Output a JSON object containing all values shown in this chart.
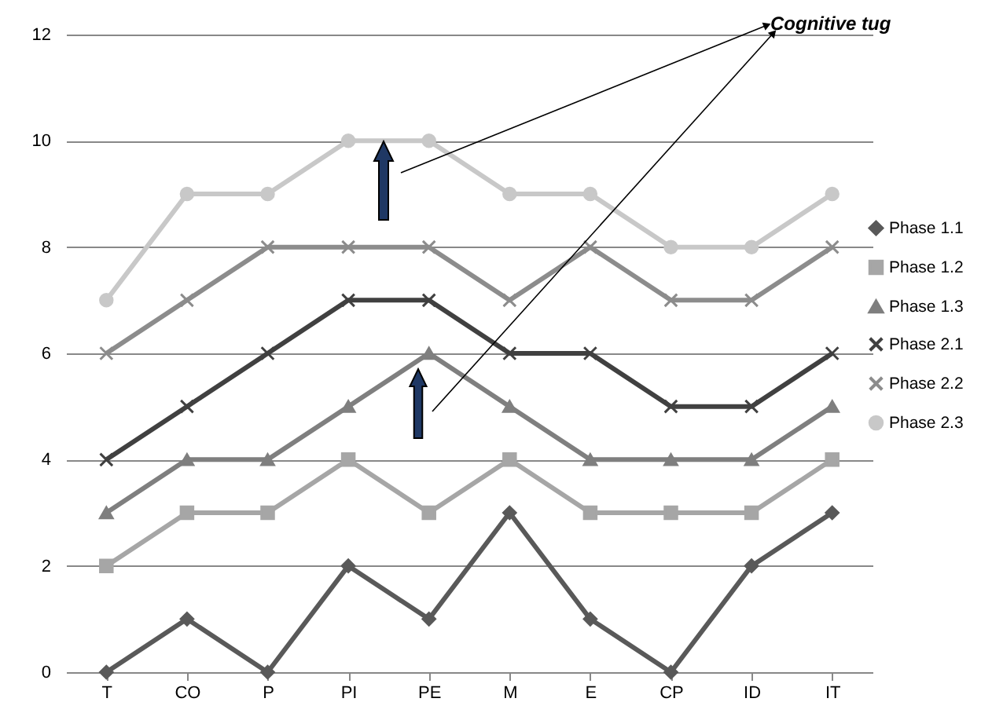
{
  "chart_data": {
    "type": "line",
    "categories": [
      "T",
      "CO",
      "P",
      "PI",
      "PE",
      "M",
      "E",
      "CP",
      "ID",
      "IT"
    ],
    "ylim": [
      0,
      12
    ],
    "yticks": [
      0,
      2,
      4,
      6,
      8,
      10,
      12
    ],
    "grid": "y",
    "legend": "right",
    "annotations": [
      "Cognitive tug"
    ],
    "series": [
      {
        "name": "Phase 1.1",
        "color": "#595959",
        "marker": "diamond",
        "values": [
          0,
          1,
          0,
          2,
          1,
          3,
          1,
          0,
          2,
          3
        ]
      },
      {
        "name": "Phase 1.2",
        "color": "#a6a6a6",
        "marker": "square",
        "values": [
          2,
          3,
          3,
          4,
          3,
          4,
          3,
          3,
          3,
          4
        ]
      },
      {
        "name": "Phase 1.3",
        "color": "#7f7f7f",
        "marker": "triangle",
        "values": [
          3,
          4,
          4,
          5,
          6,
          5,
          4,
          4,
          4,
          5
        ]
      },
      {
        "name": "Phase 2.1",
        "color": "#404040",
        "marker": "cross",
        "values": [
          4,
          5,
          6,
          7,
          7,
          6,
          6,
          5,
          5,
          6
        ]
      },
      {
        "name": "Phase 2.2",
        "color": "#8c8c8c",
        "marker": "cross",
        "values": [
          6,
          7,
          8,
          8,
          8,
          7,
          8,
          7,
          7,
          8
        ]
      },
      {
        "name": "Phase 2.3",
        "color": "#c8c8c8",
        "marker": "circle",
        "values": [
          7,
          9,
          9,
          10,
          10,
          9,
          9,
          8,
          8,
          9
        ]
      }
    ]
  }
}
